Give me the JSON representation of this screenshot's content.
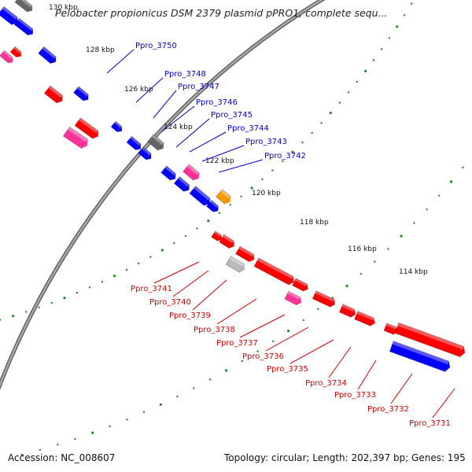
{
  "title": "Pelobacter propionicus DSM 2379 plasmid pPRO1, complete sequ...",
  "footer": {
    "accession": "Accession: NC_008607",
    "summary": "Topology: circular; Length: 202,397 bp; Genes: 195"
  },
  "ticks": [
    "130 kbp",
    "128 kbp",
    "126 kbp",
    "124 kbp",
    "122 kbp",
    "120 kbp",
    "118 kbp",
    "116 kbp",
    "114 kbp"
  ],
  "forward_genes": [
    "Ppro_3750",
    "Ppro_3748",
    "Ppro_3747",
    "Ppro_3746",
    "Ppro_3745",
    "Ppro_3744",
    "Ppro_3743",
    "Ppro_3742"
  ],
  "reverse_genes": [
    "Ppro_3741",
    "Ppro_3740",
    "Ppro_3739",
    "Ppro_3738",
    "Ppro_3737",
    "Ppro_3736",
    "Ppro_3735",
    "Ppro_3734",
    "Ppro_3733",
    "Ppro_3732",
    "Ppro_3731"
  ],
  "colors": {
    "forward_label": "#0000cc",
    "reverse_label": "#cc0000",
    "cds_forward": "#0000ff",
    "cds_reverse": "#ff0000",
    "rna": "#ff3399",
    "hypothetical": "#666666",
    "pseudo": "#bbbbbb",
    "other": "#ff9900",
    "backbone": "#888888",
    "tick_dots": "#228822"
  }
}
